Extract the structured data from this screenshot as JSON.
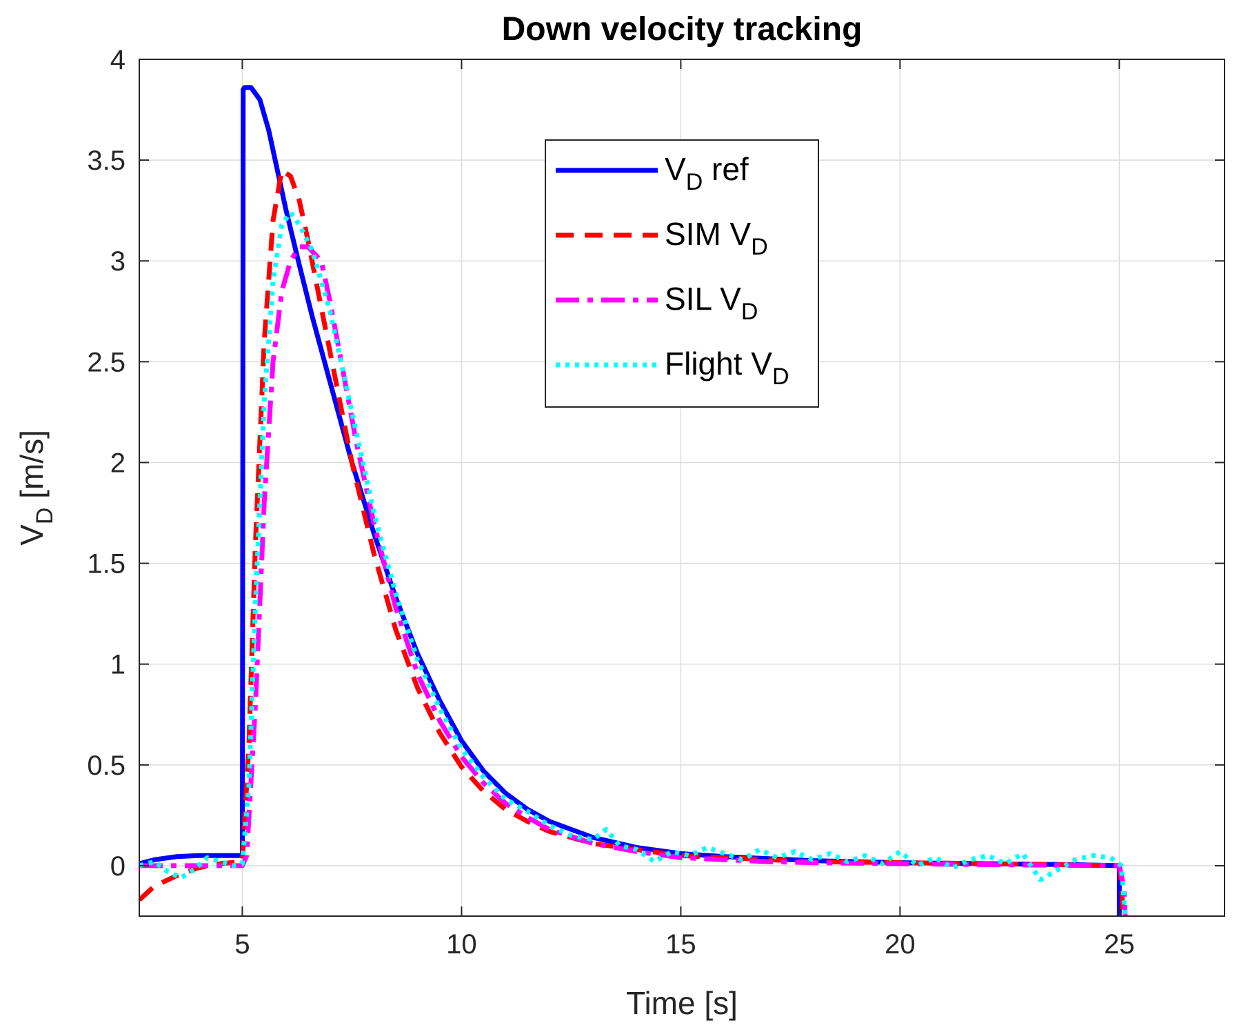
{
  "chart_data": {
    "type": "line",
    "title": "Down velocity tracking",
    "xlabel": "Time [s]",
    "ylabel": {
      "main": "V",
      "sub": "D",
      "rest": " [m/s]"
    },
    "xlim": [
      2.65,
      27.4
    ],
    "ylim": [
      -0.25,
      4
    ],
    "xticks": [
      5,
      10,
      15,
      20,
      25
    ],
    "xtick_labels": [
      "5",
      "10",
      "15",
      "20",
      "25"
    ],
    "yticks": [
      0,
      0.5,
      1,
      1.5,
      2,
      2.5,
      3,
      3.5,
      4
    ],
    "ytick_labels": [
      "0",
      "0.5",
      "1",
      "1.5",
      "2",
      "2.5",
      "3",
      "3.5",
      "4"
    ],
    "grid": true,
    "legend_position": "top-center",
    "series": [
      {
        "name": "V_D ref",
        "legend": {
          "main": "V",
          "sub": "D",
          "rest": " ref"
        },
        "color": "#0000ff",
        "style": "solid",
        "x": [
          2.65,
          3.0,
          3.5,
          4.0,
          4.5,
          5.0,
          5.02,
          5.05,
          5.2,
          5.4,
          5.6,
          5.8,
          6.0,
          6.3,
          6.6,
          7.0,
          7.5,
          8.0,
          8.5,
          9.0,
          9.5,
          10.0,
          10.5,
          11.0,
          11.5,
          12.0,
          13.0,
          14.0,
          15.0,
          16.0,
          17.0,
          18.0,
          20.0,
          22.0,
          24.0,
          25.0,
          25.0
        ],
        "y": [
          0.01,
          0.03,
          0.045,
          0.05,
          0.05,
          0.05,
          3.85,
          3.86,
          3.86,
          3.8,
          3.65,
          3.45,
          3.25,
          2.98,
          2.72,
          2.4,
          2.0,
          1.65,
          1.33,
          1.05,
          0.82,
          0.62,
          0.47,
          0.36,
          0.28,
          0.22,
          0.14,
          0.09,
          0.06,
          0.045,
          0.035,
          0.025,
          0.015,
          0.01,
          0.005,
          0.0,
          -0.3
        ]
      },
      {
        "name": "SIM V_D",
        "legend": {
          "main": "SIM V",
          "sub": "D",
          "rest": ""
        },
        "color": "#ff0000",
        "style": "dashed",
        "x": [
          2.65,
          3.0,
          3.5,
          4.0,
          4.5,
          5.0,
          5.15,
          5.3,
          5.5,
          5.7,
          5.9,
          6.1,
          6.3,
          6.5,
          7.0,
          7.5,
          8.0,
          8.5,
          9.0,
          9.5,
          10.0,
          10.5,
          11.0,
          11.5,
          12.0,
          13.0,
          14.0,
          15.0,
          16.0,
          17.0,
          18.0,
          20.0,
          22.0,
          25.0,
          25.05,
          25.1
        ],
        "y": [
          -0.17,
          -0.1,
          -0.05,
          -0.01,
          0.01,
          0.02,
          0.6,
          1.6,
          2.6,
          3.2,
          3.45,
          3.42,
          3.3,
          3.1,
          2.55,
          2.0,
          1.55,
          1.17,
          0.88,
          0.66,
          0.49,
          0.37,
          0.28,
          0.22,
          0.17,
          0.11,
          0.08,
          0.05,
          0.04,
          0.03,
          0.02,
          0.015,
          0.01,
          0.0,
          -0.1,
          -0.3
        ]
      },
      {
        "name": "SIL V_D",
        "legend": {
          "main": "SIL V",
          "sub": "D",
          "rest": ""
        },
        "color": "#ff00ff",
        "style": "dashdot",
        "x": [
          2.65,
          3.5,
          4.5,
          5.0,
          5.1,
          5.3,
          5.5,
          5.7,
          5.9,
          6.1,
          6.3,
          6.5,
          6.8,
          7.0,
          7.3,
          7.6,
          8.0,
          8.5,
          9.0,
          9.5,
          10.0,
          10.5,
          11.0,
          11.5,
          12.0,
          13.0,
          14.0,
          15.0,
          16.0,
          17.0,
          18.0,
          20.0,
          22.0,
          25.0,
          25.1,
          25.15
        ],
        "y": [
          0.0,
          0.0,
          0.0,
          0.0,
          0.05,
          0.8,
          1.8,
          2.5,
          2.85,
          3.0,
          3.07,
          3.07,
          3.0,
          2.8,
          2.45,
          2.1,
          1.7,
          1.28,
          0.95,
          0.72,
          0.54,
          0.41,
          0.31,
          0.24,
          0.18,
          0.11,
          0.07,
          0.04,
          0.03,
          0.02,
          0.015,
          0.01,
          0.005,
          0.0,
          -0.1,
          -0.3
        ]
      },
      {
        "name": "Flight V_D",
        "legend": {
          "main": "Flight V",
          "sub": "D",
          "rest": ""
        },
        "color": "#00ffff",
        "style": "dotted",
        "x": [
          2.65,
          3.0,
          3.3,
          3.6,
          3.9,
          4.2,
          4.5,
          4.8,
          5.0,
          5.15,
          5.3,
          5.5,
          5.7,
          5.9,
          6.1,
          6.3,
          6.6,
          7.0,
          7.3,
          7.6,
          8.0,
          8.5,
          9.0,
          9.5,
          10.0,
          10.5,
          11.0,
          11.5,
          12.0,
          12.5,
          13.0,
          13.3,
          13.6,
          14.0,
          14.4,
          14.8,
          15.2,
          15.6,
          16.0,
          16.4,
          16.8,
          17.2,
          17.6,
          18.0,
          18.4,
          18.8,
          19.2,
          19.6,
          20.0,
          20.4,
          20.8,
          21.2,
          21.6,
          22.0,
          22.4,
          22.8,
          23.2,
          23.6,
          24.0,
          24.4,
          24.8,
          25.05,
          25.15
        ],
        "y": [
          0.0,
          0.02,
          -0.03,
          -0.06,
          -0.02,
          0.04,
          0.02,
          0.0,
          0.01,
          0.4,
          1.3,
          2.3,
          2.9,
          3.18,
          3.24,
          3.18,
          3.05,
          2.75,
          2.45,
          2.15,
          1.75,
          1.35,
          1.02,
          0.78,
          0.58,
          0.44,
          0.33,
          0.27,
          0.2,
          0.15,
          0.13,
          0.18,
          0.1,
          0.08,
          0.02,
          0.07,
          0.05,
          0.09,
          0.06,
          0.03,
          0.08,
          0.04,
          0.07,
          0.03,
          0.06,
          0.02,
          0.05,
          0.01,
          0.07,
          0.0,
          0.04,
          -0.01,
          0.03,
          0.05,
          0.01,
          0.06,
          -0.07,
          -0.02,
          0.03,
          0.05,
          0.04,
          0.0,
          -0.3
        ]
      }
    ]
  }
}
